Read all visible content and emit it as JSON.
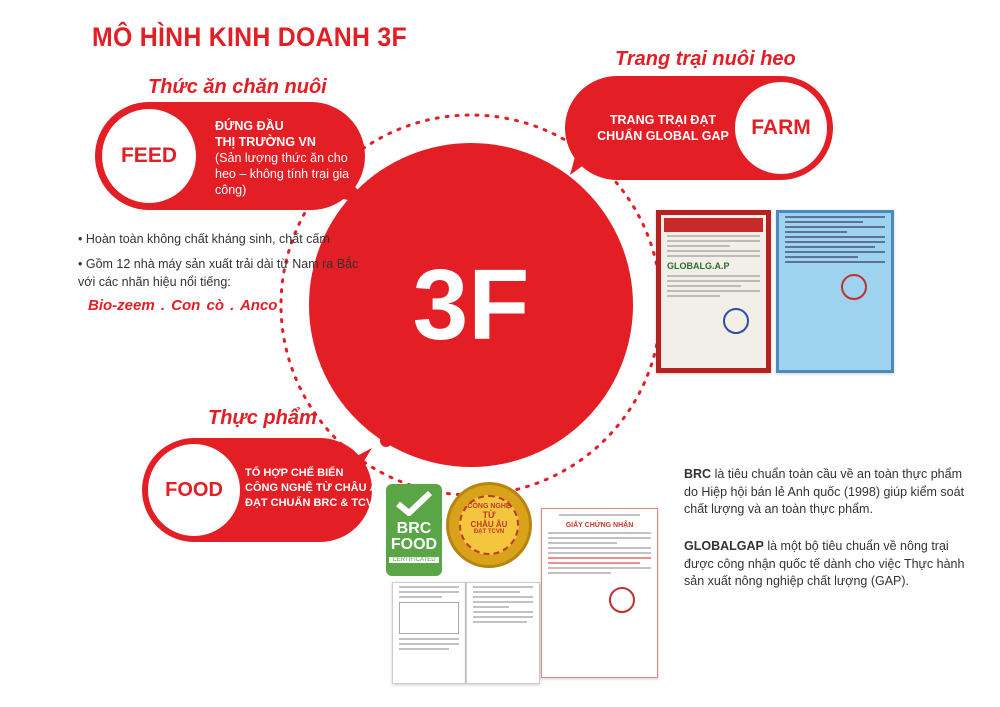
{
  "title": "MÔ HÌNH KINH DOANH 3F",
  "center": {
    "label": "3F"
  },
  "feed": {
    "section": "Thức ăn chăn nuôi",
    "badge": "FEED",
    "line1": "ĐỨNG ĐẦU",
    "line2": "THỊ TRƯỜNG VN",
    "note": "(Sản lượng thức ăn cho heo – không tính trại gia công)",
    "bullets": [
      "Hoàn toàn không chất kháng sinh, chất cấm",
      "Gồm 12 nhà máy sản xuất trải dài từ Nam ra Bắc với các nhãn hiệu nổi tiếng:"
    ],
    "brands": "Bio-zeem  .  Con cò  .  Anco"
  },
  "farm": {
    "section": "Trang trại nuôi heo",
    "badge": "FARM",
    "line1": "TRANG TRẠI ĐẠT",
    "line2": "CHUẨN GLOBAL GAP",
    "cert_logo": "GLOBALG.A.P"
  },
  "food": {
    "section": "Thực phẩm",
    "badge": "FOOD",
    "line1": "TỔ HỢP CHẾ BIẾN",
    "line2": "CÔNG NGHỆ TỪ CHÂU ÂU",
    "line3": "ĐẠT CHUẨN BRC & TCVN",
    "brc_logo": {
      "l1": "BRC",
      "l2": "FOOD",
      "l3": "CERTIFICATED"
    },
    "seal": {
      "top": "CÔNG NGHỆ",
      "mid1": "TỪ",
      "mid2": "CHÂU ÂU",
      "bottom": "ĐẠT TCVN"
    },
    "cert_title": "GIẤY CHỨNG NHẬN"
  },
  "info": {
    "brc_term": "BRC",
    "brc_text": " là tiêu chuẩn toàn cầu về an toàn thực phẩm do Hiệp hội bán lẻ Anh quốc (1998) giúp kiểm soát chất lượng và an toàn thực phẩm.",
    "gap_term": "GLOBALGAP",
    "gap_text": " là một bộ tiêu chuẩn về nông trại được công nhận quốc tế dành cho việc Thực hành sản xuất nông nghiệp chất lượng (GAP)."
  },
  "colors": {
    "accent": "#e31e24",
    "text": "#333333",
    "brc_green": "#5aa646",
    "seal_gold": "#d9a21b"
  }
}
